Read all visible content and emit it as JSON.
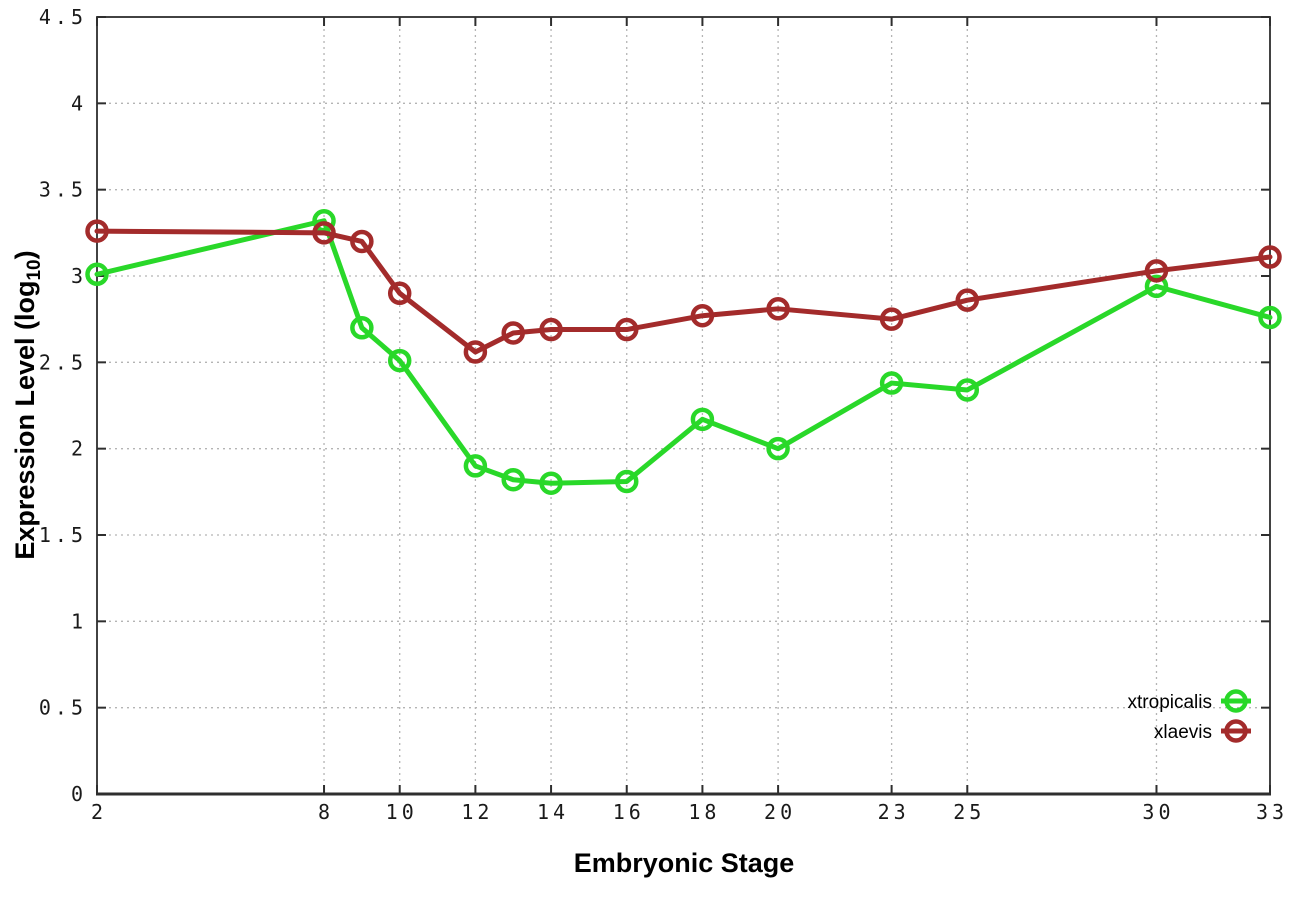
{
  "chart_data": {
    "type": "line",
    "title": "",
    "xlabel": "Embryonic Stage",
    "ylabel": {
      "prefix": "Expression Level (log",
      "sub": "10",
      "suffix": ")"
    },
    "x": [
      2,
      8,
      9,
      10,
      12,
      13,
      14,
      16,
      18,
      20,
      23,
      25,
      30,
      33
    ],
    "series": [
      {
        "name": "xtropicalis",
        "color": "#29D829",
        "values": [
          3.01,
          3.32,
          2.7,
          2.51,
          1.9,
          1.82,
          1.8,
          1.81,
          2.17,
          2.0,
          2.38,
          2.34,
          2.94,
          2.76
        ]
      },
      {
        "name": "xlaevis",
        "color": "#A32B2B",
        "values": [
          3.26,
          3.25,
          3.2,
          2.9,
          2.56,
          2.67,
          2.69,
          2.69,
          2.77,
          2.81,
          2.75,
          2.86,
          3.03,
          3.11
        ]
      }
    ],
    "xlim": [
      2,
      33
    ],
    "ylim": [
      0,
      4.5
    ],
    "xticks": [
      2,
      8,
      10,
      12,
      14,
      16,
      18,
      20,
      23,
      25,
      30,
      33
    ],
    "yticks": [
      0,
      0.5,
      1,
      1.5,
      2,
      2.5,
      3,
      3.5,
      4,
      4.5
    ],
    "grid": true,
    "legend_position": "bottom-right-inside"
  },
  "style": {
    "background": "#ffffff",
    "grid_color": "#b4b4b4",
    "axis_color": "#2e2e2e",
    "tick_label_color": "#1a1a1a"
  }
}
